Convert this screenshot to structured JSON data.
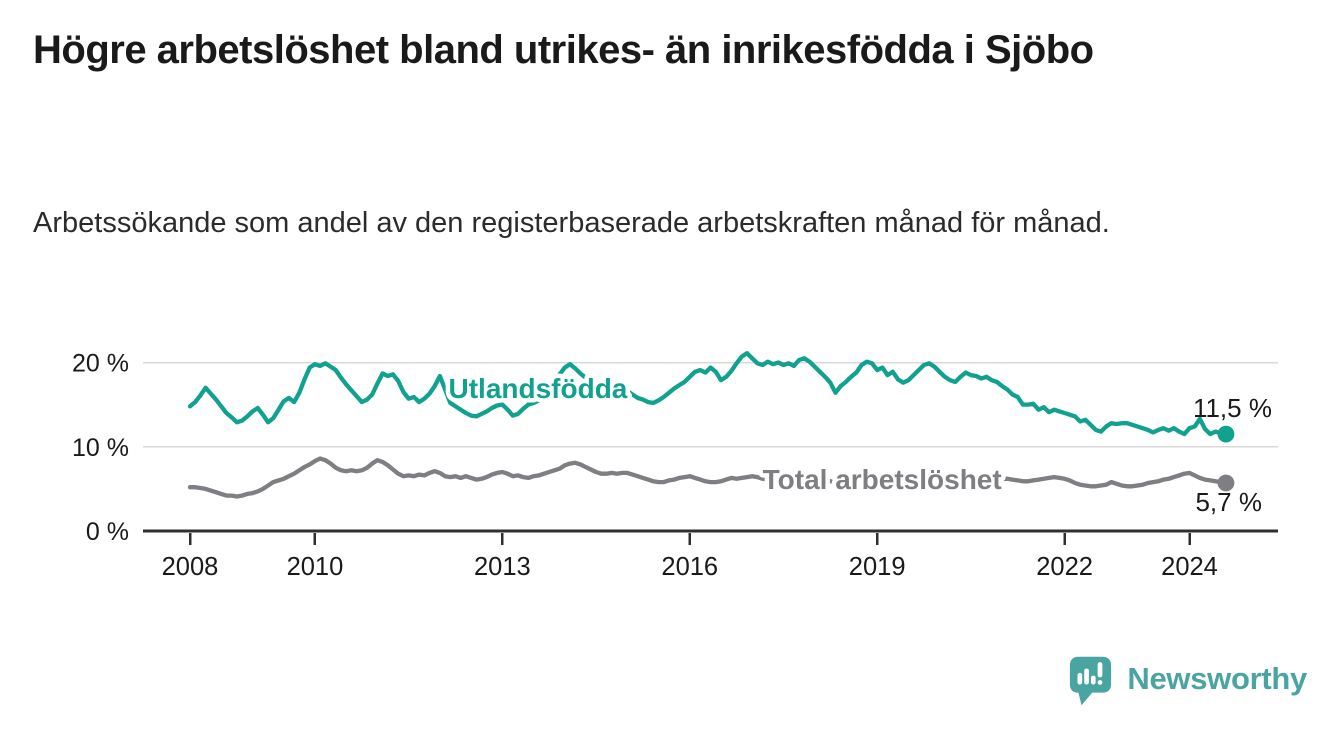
{
  "header": {
    "title": "Högre arbetslöshet bland utrikes- än inrikesfödda i Sjöbo",
    "subtitle": "Arbetssökande som andel av den registerbaserade arbetskraften månad för månad."
  },
  "branding": {
    "logo_text": "Newsworthy",
    "logo_color": "#4aa5a2",
    "logo_icon": "bar-chart-speech-bubble-icon"
  },
  "chart_data": {
    "type": "line",
    "x_start_year": 2008,
    "x_step": "month",
    "grid": "horizontal",
    "legend_position": "inline-labels",
    "xticks": [
      {
        "year": 2008,
        "label": "2008"
      },
      {
        "year": 2010,
        "label": "2010"
      },
      {
        "year": 2013,
        "label": "2013"
      },
      {
        "year": 2016,
        "label": "2016"
      },
      {
        "year": 2019,
        "label": "2019"
      },
      {
        "year": 2022,
        "label": "2022"
      },
      {
        "year": 2024,
        "label": "2024"
      }
    ],
    "yticks": [
      {
        "value": 0,
        "label": "0 %"
      },
      {
        "value": 10,
        "label": "10 %"
      },
      {
        "value": 20,
        "label": "20 %"
      }
    ],
    "ylim": [
      0,
      22.5
    ],
    "colors": {
      "axis": "#2f2f2f",
      "grid": "#d9d9d9",
      "tick_text": "#1a1a1a",
      "end_label_text": "#1a1a1a"
    },
    "series": [
      {
        "name": "Utlandsfödda",
        "color": "#10a18f",
        "end_label": "11,5 %",
        "label_pos": {
          "year": 2013.57,
          "value": 17.0
        },
        "values": [
          14.8,
          15.3,
          16.1,
          17.0,
          16.3,
          15.6,
          14.8,
          14.0,
          13.5,
          12.9,
          13.1,
          13.6,
          14.2,
          14.6,
          13.8,
          12.9,
          13.4,
          14.4,
          15.4,
          15.8,
          15.3,
          16.4,
          18.0,
          19.4,
          19.8,
          19.6,
          19.9,
          19.5,
          19.1,
          18.2,
          17.4,
          16.7,
          16.0,
          15.3,
          15.6,
          16.2,
          17.5,
          18.7,
          18.4,
          18.6,
          17.8,
          16.5,
          15.7,
          15.9,
          15.3,
          15.7,
          16.3,
          17.2,
          18.4,
          16.8,
          15.2,
          14.8,
          14.4,
          14.0,
          13.7,
          13.6,
          13.9,
          14.2,
          14.6,
          14.9,
          15.0,
          14.4,
          13.7,
          13.9,
          14.5,
          15.0,
          15.2,
          15.5,
          16.1,
          16.8,
          17.6,
          18.6,
          19.4,
          19.8,
          19.3,
          18.7,
          18.2,
          17.8,
          17.4,
          17.0,
          16.7,
          16.5,
          16.4,
          16.5,
          16.6,
          16.2,
          15.8,
          15.6,
          15.3,
          15.2,
          15.5,
          15.9,
          16.4,
          16.9,
          17.3,
          17.7,
          18.3,
          18.9,
          19.1,
          18.8,
          19.4,
          18.9,
          17.9,
          18.3,
          19.0,
          19.9,
          20.7,
          21.1,
          20.5,
          19.9,
          19.7,
          20.1,
          19.8,
          20.0,
          19.7,
          19.9,
          19.6,
          20.3,
          20.5,
          20.1,
          19.5,
          18.9,
          18.3,
          17.6,
          16.4,
          17.2,
          17.7,
          18.3,
          18.8,
          19.7,
          20.1,
          19.9,
          19.1,
          19.4,
          18.5,
          18.9,
          18.0,
          17.6,
          17.9,
          18.5,
          19.1,
          19.7,
          19.9,
          19.5,
          18.9,
          18.3,
          17.9,
          17.7,
          18.3,
          18.8,
          18.5,
          18.4,
          18.1,
          18.3,
          17.9,
          17.7,
          17.2,
          16.8,
          16.2,
          15.9,
          15.0,
          15.0,
          15.1,
          14.4,
          14.7,
          14.1,
          14.4,
          14.2,
          14.0,
          13.8,
          13.6,
          13.0,
          13.2,
          12.6,
          12.0,
          11.8,
          12.4,
          12.8,
          12.7,
          12.8,
          12.8,
          12.6,
          12.4,
          12.2,
          12.0,
          11.7,
          12.0,
          12.2,
          11.9,
          12.2,
          11.8,
          11.5,
          12.2,
          12.4,
          13.3,
          12.1,
          11.5,
          11.8,
          11.6,
          11.5
        ]
      },
      {
        "name": "Total arbetslöshet",
        "color": "#7e7e83",
        "end_label": "5,7 %",
        "label_pos": {
          "year": 2019.08,
          "value": 6.2
        },
        "values": [
          5.2,
          5.2,
          5.1,
          5.0,
          4.8,
          4.6,
          4.4,
          4.2,
          4.2,
          4.1,
          4.2,
          4.4,
          4.5,
          4.7,
          5.0,
          5.4,
          5.8,
          6.0,
          6.2,
          6.5,
          6.8,
          7.2,
          7.6,
          7.9,
          8.3,
          8.6,
          8.4,
          8.0,
          7.5,
          7.2,
          7.1,
          7.2,
          7.1,
          7.2,
          7.5,
          8.0,
          8.4,
          8.2,
          7.8,
          7.3,
          6.8,
          6.5,
          6.6,
          6.5,
          6.7,
          6.6,
          6.9,
          7.1,
          6.9,
          6.5,
          6.4,
          6.5,
          6.3,
          6.5,
          6.3,
          6.1,
          6.2,
          6.4,
          6.7,
          6.9,
          7.0,
          6.8,
          6.5,
          6.6,
          6.4,
          6.3,
          6.5,
          6.6,
          6.8,
          7.0,
          7.2,
          7.4,
          7.8,
          8.0,
          8.1,
          7.9,
          7.6,
          7.3,
          7.0,
          6.8,
          6.8,
          6.9,
          6.8,
          6.9,
          6.9,
          6.7,
          6.5,
          6.3,
          6.1,
          5.9,
          5.8,
          5.8,
          6.0,
          6.1,
          6.3,
          6.4,
          6.5,
          6.3,
          6.1,
          5.9,
          5.8,
          5.8,
          5.9,
          6.1,
          6.3,
          6.2,
          6.3,
          6.4,
          6.5,
          6.4,
          6.2,
          6.1,
          6.0,
          5.9,
          6.0,
          6.1,
          6.2,
          6.3,
          6.4,
          6.4,
          6.3,
          6.2,
          6.0,
          5.9,
          5.8,
          5.8,
          5.9,
          6.0,
          6.0,
          6.1,
          6.2,
          6.2,
          6.1,
          6.0,
          5.9,
          5.8,
          5.8,
          5.9,
          6.0,
          6.1,
          6.1,
          6.2,
          6.3,
          6.3,
          6.4,
          6.4,
          6.6,
          6.9,
          7.0,
          6.9,
          6.8,
          6.7,
          6.6,
          6.5,
          6.4,
          6.3,
          6.2,
          6.2,
          6.1,
          6.0,
          5.9,
          5.9,
          6.0,
          6.1,
          6.2,
          6.3,
          6.4,
          6.3,
          6.2,
          6.0,
          5.7,
          5.5,
          5.4,
          5.3,
          5.3,
          5.4,
          5.5,
          5.8,
          5.6,
          5.4,
          5.3,
          5.3,
          5.4,
          5.5,
          5.7,
          5.8,
          5.9,
          6.1,
          6.2,
          6.4,
          6.6,
          6.8,
          6.9,
          6.6,
          6.3,
          6.1,
          6.0,
          5.9,
          5.8,
          5.7
        ]
      }
    ]
  }
}
